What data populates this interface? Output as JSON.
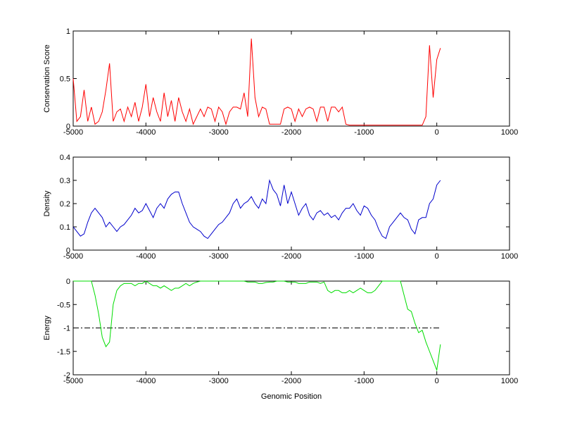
{
  "chart_data": [
    {
      "type": "line",
      "ylabel": "Conservation Score",
      "color": "#ff0000",
      "x": [
        -5000,
        -4950,
        -4900,
        -4850,
        -4800,
        -4750,
        -4700,
        -4650,
        -4600,
        -4550,
        -4500,
        -4450,
        -4400,
        -4350,
        -4300,
        -4250,
        -4200,
        -4150,
        -4100,
        -4050,
        -4000,
        -3950,
        -3900,
        -3850,
        -3800,
        -3750,
        -3700,
        -3650,
        -3600,
        -3550,
        -3500,
        -3450,
        -3400,
        -3350,
        -3300,
        -3250,
        -3200,
        -3150,
        -3100,
        -3050,
        -3000,
        -2950,
        -2900,
        -2850,
        -2800,
        -2750,
        -2700,
        -2650,
        -2600,
        -2550,
        -2500,
        -2450,
        -2400,
        -2350,
        -2300,
        -2250,
        -2200,
        -2150,
        -2100,
        -2050,
        -2000,
        -1950,
        -1900,
        -1850,
        -1800,
        -1750,
        -1700,
        -1650,
        -1600,
        -1550,
        -1500,
        -1450,
        -1400,
        -1350,
        -1300,
        -1250,
        -1200,
        -1150,
        -1100,
        -1050,
        -1000,
        -950,
        -900,
        -850,
        -800,
        -750,
        -700,
        -650,
        -600,
        -550,
        -500,
        -450,
        -400,
        -350,
        -300,
        -250,
        -200,
        -150,
        -100,
        -50,
        0,
        50
      ],
      "values": [
        0.5,
        0.05,
        0.1,
        0.38,
        0.05,
        0.2,
        0.02,
        0.05,
        0.15,
        0.38,
        0.66,
        0.05,
        0.15,
        0.18,
        0.05,
        0.2,
        0.1,
        0.25,
        0.05,
        0.2,
        0.44,
        0.1,
        0.3,
        0.15,
        0.05,
        0.35,
        0.1,
        0.27,
        0.05,
        0.3,
        0.15,
        0.05,
        0.18,
        0.02,
        0.1,
        0.18,
        0.1,
        0.2,
        0.18,
        0.05,
        0.2,
        0.15,
        0.02,
        0.15,
        0.2,
        0.2,
        0.18,
        0.35,
        0.1,
        0.92,
        0.3,
        0.1,
        0.2,
        0.18,
        0.02,
        0.02,
        0.02,
        0.02,
        0.18,
        0.2,
        0.18,
        0.05,
        0.18,
        0.1,
        0.18,
        0.2,
        0.18,
        0.05,
        0.2,
        0.2,
        0.05,
        0.2,
        0.2,
        0.15,
        0.2,
        0.02,
        0.01,
        0.01,
        0.01,
        0.01,
        0.01,
        0.01,
        0.01,
        0.01,
        0.01,
        0.01,
        0.01,
        0.01,
        0.01,
        0.01,
        0.01,
        0.01,
        0.01,
        0.01,
        0.01,
        0.01,
        0.01,
        0.1,
        0.85,
        0.3,
        0.7,
        0.82
      ],
      "xlim": [
        -5000,
        1000
      ],
      "xticks": [
        -5000,
        -4000,
        -3000,
        -2000,
        -1000,
        0,
        1000
      ],
      "ylim": [
        0,
        1
      ],
      "yticks": [
        0,
        0.5,
        1
      ]
    },
    {
      "type": "line",
      "ylabel": "Density",
      "color": "#0000cc",
      "x": [
        -5000,
        -4950,
        -4900,
        -4850,
        -4800,
        -4750,
        -4700,
        -4650,
        -4600,
        -4550,
        -4500,
        -4450,
        -4400,
        -4350,
        -4300,
        -4250,
        -4200,
        -4150,
        -4100,
        -4050,
        -4000,
        -3950,
        -3900,
        -3850,
        -3800,
        -3750,
        -3700,
        -3650,
        -3600,
        -3550,
        -3500,
        -3450,
        -3400,
        -3350,
        -3300,
        -3250,
        -3200,
        -3150,
        -3100,
        -3050,
        -3000,
        -2950,
        -2900,
        -2850,
        -2800,
        -2750,
        -2700,
        -2650,
        -2600,
        -2550,
        -2500,
        -2450,
        -2400,
        -2350,
        -2300,
        -2250,
        -2200,
        -2150,
        -2100,
        -2050,
        -2000,
        -1950,
        -1900,
        -1850,
        -1800,
        -1750,
        -1700,
        -1650,
        -1600,
        -1550,
        -1500,
        -1450,
        -1400,
        -1350,
        -1300,
        -1250,
        -1200,
        -1150,
        -1100,
        -1050,
        -1000,
        -950,
        -900,
        -850,
        -800,
        -750,
        -700,
        -650,
        -600,
        -550,
        -500,
        -450,
        -400,
        -350,
        -300,
        -250,
        -200,
        -150,
        -100,
        -50,
        0,
        50
      ],
      "values": [
        0.1,
        0.08,
        0.06,
        0.07,
        0.12,
        0.16,
        0.18,
        0.16,
        0.14,
        0.1,
        0.12,
        0.1,
        0.08,
        0.1,
        0.11,
        0.13,
        0.15,
        0.18,
        0.16,
        0.17,
        0.2,
        0.17,
        0.14,
        0.18,
        0.2,
        0.18,
        0.22,
        0.24,
        0.25,
        0.25,
        0.2,
        0.16,
        0.12,
        0.1,
        0.09,
        0.08,
        0.06,
        0.05,
        0.07,
        0.09,
        0.11,
        0.12,
        0.14,
        0.16,
        0.2,
        0.22,
        0.18,
        0.2,
        0.21,
        0.23,
        0.2,
        0.18,
        0.22,
        0.2,
        0.3,
        0.26,
        0.24,
        0.19,
        0.28,
        0.2,
        0.25,
        0.2,
        0.15,
        0.18,
        0.2,
        0.15,
        0.13,
        0.16,
        0.17,
        0.15,
        0.16,
        0.14,
        0.15,
        0.13,
        0.16,
        0.18,
        0.18,
        0.2,
        0.17,
        0.15,
        0.19,
        0.18,
        0.15,
        0.13,
        0.09,
        0.06,
        0.05,
        0.1,
        0.12,
        0.14,
        0.16,
        0.14,
        0.13,
        0.09,
        0.07,
        0.13,
        0.14,
        0.14,
        0.2,
        0.22,
        0.28,
        0.3
      ],
      "xlim": [
        -5000,
        1000
      ],
      "xticks": [
        -5000,
        -4000,
        -3000,
        -2000,
        -1000,
        0,
        1000
      ],
      "ylim": [
        0,
        0.4
      ],
      "yticks": [
        0,
        0.1,
        0.2,
        0.3,
        0.4
      ]
    },
    {
      "type": "line",
      "ylabel": "Energy",
      "xlabel": "Genomic Position",
      "color": "#00dd00",
      "x": [
        -5000,
        -4950,
        -4900,
        -4850,
        -4800,
        -4750,
        -4700,
        -4650,
        -4600,
        -4550,
        -4500,
        -4450,
        -4400,
        -4350,
        -4300,
        -4250,
        -4200,
        -4150,
        -4100,
        -4050,
        -4000,
        -3950,
        -3900,
        -3850,
        -3800,
        -3750,
        -3700,
        -3650,
        -3600,
        -3550,
        -3500,
        -3450,
        -3400,
        -3350,
        -3300,
        -3250,
        -3200,
        -3150,
        -3100,
        -3050,
        -3000,
        -2950,
        -2900,
        -2850,
        -2800,
        -2750,
        -2700,
        -2650,
        -2600,
        -2550,
        -2500,
        -2450,
        -2400,
        -2350,
        -2300,
        -2250,
        -2200,
        -2150,
        -2100,
        -2050,
        -2000,
        -1950,
        -1900,
        -1850,
        -1800,
        -1750,
        -1700,
        -1650,
        -1600,
        -1550,
        -1500,
        -1450,
        -1400,
        -1350,
        -1300,
        -1250,
        -1200,
        -1150,
        -1100,
        -1050,
        -1000,
        -950,
        -900,
        -850,
        -800,
        -750,
        -700,
        -650,
        -600,
        -550,
        -500,
        -450,
        -400,
        -350,
        -300,
        -250,
        -200,
        -150,
        -100,
        -50,
        0,
        50
      ],
      "values": [
        0,
        0,
        0,
        0,
        0,
        0,
        -0.3,
        -0.7,
        -1.2,
        -1.4,
        -1.3,
        -0.5,
        -0.2,
        -0.1,
        -0.05,
        -0.05,
        -0.05,
        -0.1,
        -0.05,
        -0.05,
        0,
        -0.05,
        -0.1,
        -0.1,
        -0.15,
        -0.1,
        -0.15,
        -0.2,
        -0.15,
        -0.15,
        -0.1,
        -0.05,
        -0.1,
        -0.05,
        -0.02,
        0,
        0,
        0,
        0,
        0,
        0,
        0,
        0,
        0,
        0,
        0,
        0,
        0,
        -0.02,
        -0.02,
        -0.02,
        -0.05,
        -0.05,
        -0.03,
        -0.02,
        -0.02,
        0,
        0,
        0,
        -0.02,
        -0.02,
        -0.02,
        -0.05,
        -0.05,
        -0.05,
        -0.02,
        -0.02,
        -0.02,
        -0.05,
        -0.02,
        -0.2,
        -0.25,
        -0.2,
        -0.2,
        -0.25,
        -0.25,
        -0.2,
        -0.25,
        -0.2,
        -0.15,
        -0.2,
        -0.25,
        -0.25,
        -0.2,
        -0.1,
        0,
        0,
        0,
        0,
        0,
        0,
        -0.3,
        -0.6,
        -0.65,
        -0.9,
        -1.1,
        -1.05,
        -1.3,
        -1.5,
        -1.7,
        -1.9,
        -1.35
      ],
      "reference_line": {
        "y": -1,
        "x": [
          -5000,
          50
        ],
        "style": "dash-dot",
        "color": "#000000"
      },
      "xlim": [
        -5000,
        1000
      ],
      "xticks": [
        -5000,
        -4000,
        -3000,
        -2000,
        -1000,
        0,
        1000
      ],
      "ylim": [
        -2,
        0
      ],
      "yticks": [
        -2,
        -1.5,
        -1,
        -0.5,
        0
      ]
    }
  ]
}
